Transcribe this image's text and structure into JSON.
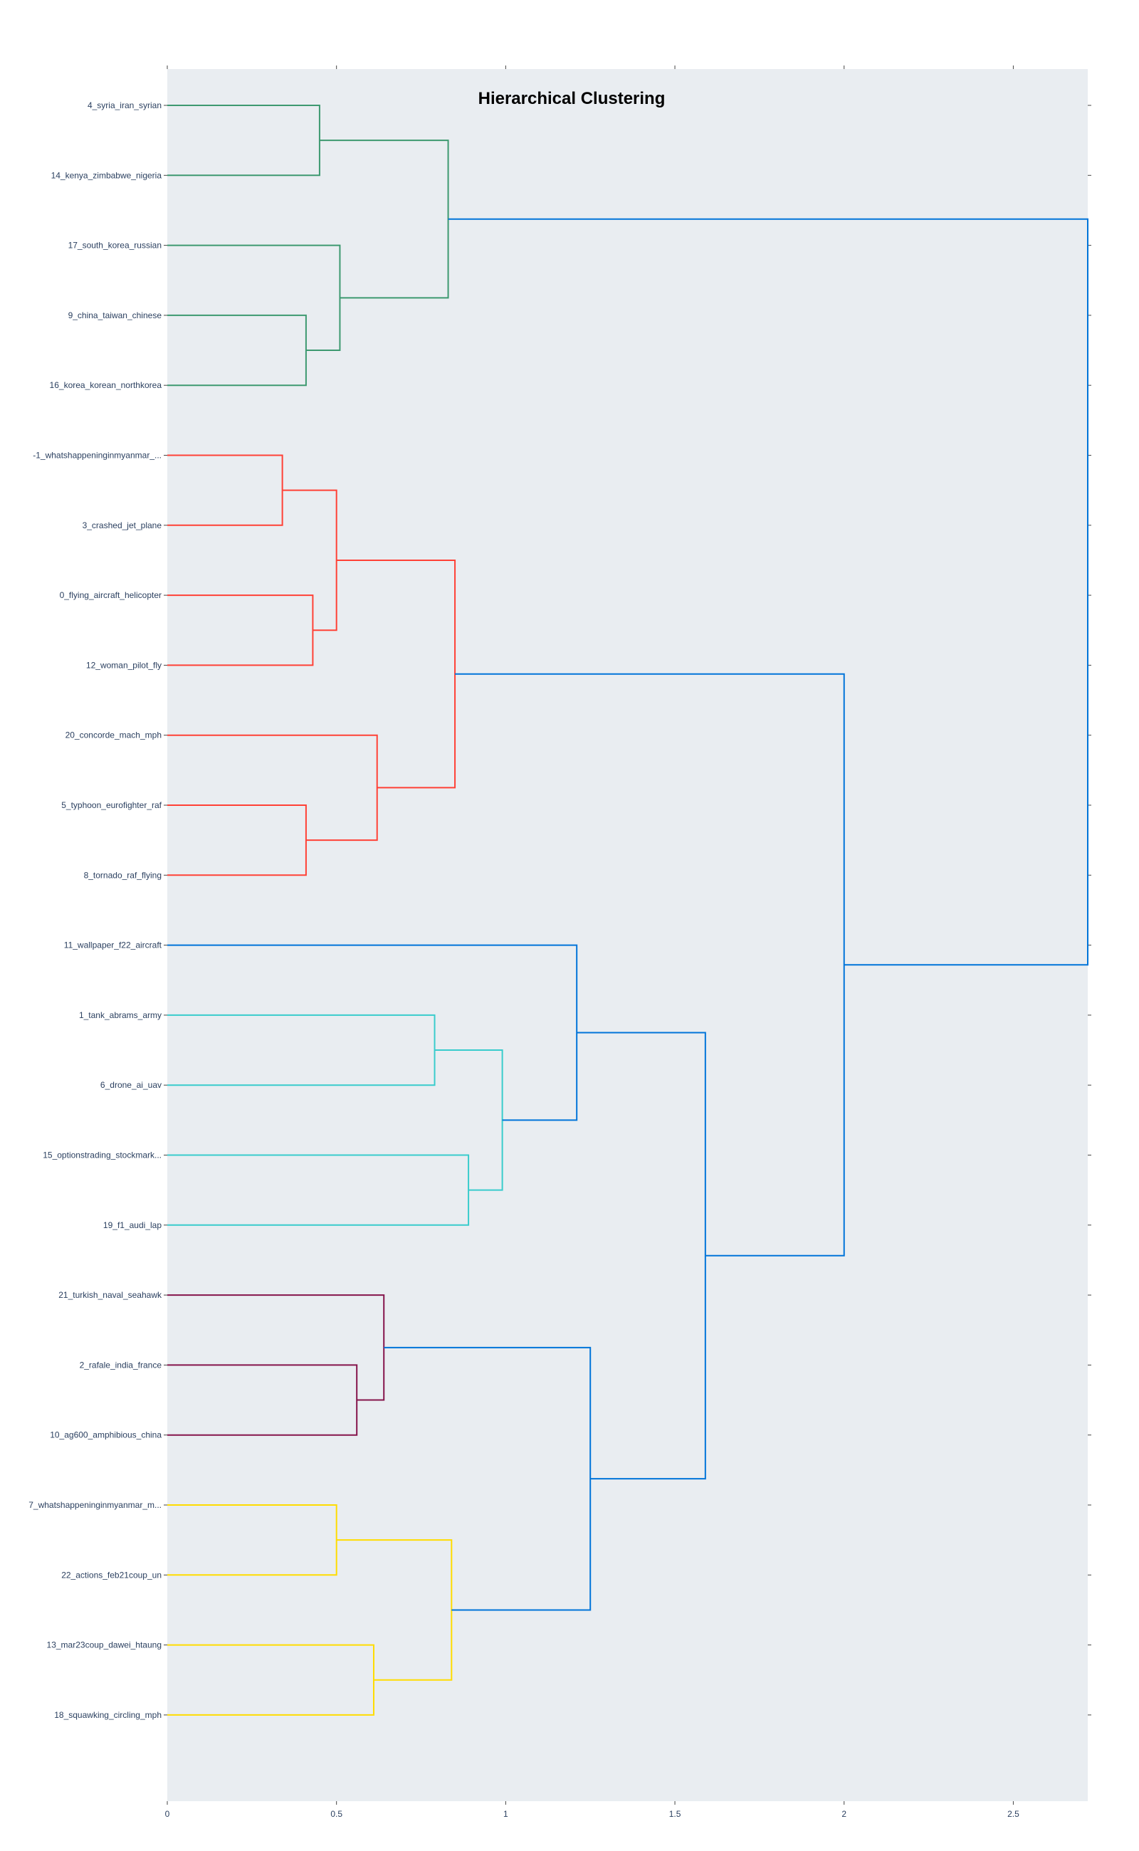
{
  "chart_data": {
    "type": "dendrogram",
    "title": "Hierarchical Clustering",
    "xlim": [
      0,
      2.72
    ],
    "x_ticks": [
      0,
      0.5,
      1,
      1.5,
      2,
      2.5
    ],
    "x_tick_labels": [
      "0",
      "0.5",
      "1",
      "1.5",
      "2",
      "2.5"
    ],
    "leaves": [
      "4_syria_iran_syrian",
      "14_kenya_zimbabwe_nigeria",
      "17_south_korea_russian",
      "9_china_taiwan_chinese",
      "16_korea_korean_northkorea",
      "-1_whatshappeninginmyanmar_...",
      "3_crashed_jet_plane",
      "0_flying_aircraft_helicopter",
      "12_woman_pilot_fly",
      "20_concorde_mach_mph",
      "5_typhoon_eurofighter_raf",
      "8_tornado_raf_flying",
      "11_wallpaper_f22_aircraft",
      "1_tank_abrams_army",
      "6_drone_ai_uav",
      "15_optionstrading_stockmark...",
      "19_f1_audi_lap",
      "21_turkish_naval_seahawk",
      "2_rafale_india_france",
      "10_ag600_amphibious_china",
      "7_whatshappeninginmyanmar_m...",
      "22_actions_feb21coup_un",
      "13_mar23coup_dawei_htaung",
      "18_squawking_circling_mph"
    ],
    "colors": {
      "green": "#3d9970",
      "red": "#ff4136",
      "blue": "#0074d9",
      "cyan": "#39cccc",
      "maroon": "#85144b",
      "yellow": "#ffdc00"
    },
    "merges": [
      {
        "id": "A",
        "a": "L0",
        "b": "L1",
        "height": 0.45,
        "color": "green"
      },
      {
        "id": "B",
        "a": "L3",
        "b": "L4",
        "height": 0.41,
        "color": "green"
      },
      {
        "id": "C",
        "a": "L2",
        "b": "B",
        "height": 0.51,
        "color": "green"
      },
      {
        "id": "D",
        "a": "A",
        "b": "C",
        "height": 0.83,
        "color": "green"
      },
      {
        "id": "E",
        "a": "L5",
        "b": "L6",
        "height": 0.34,
        "color": "red"
      },
      {
        "id": "F",
        "a": "L7",
        "b": "L8",
        "height": 0.43,
        "color": "red"
      },
      {
        "id": "G",
        "a": "E",
        "b": "F",
        "height": 0.5,
        "color": "red"
      },
      {
        "id": "H",
        "a": "L10",
        "b": "L11",
        "height": 0.41,
        "color": "red"
      },
      {
        "id": "I",
        "a": "L9",
        "b": "H",
        "height": 0.62,
        "color": "red"
      },
      {
        "id": "J",
        "a": "G",
        "b": "I",
        "height": 0.85,
        "color": "red"
      },
      {
        "id": "K",
        "a": "L13",
        "b": "L14",
        "height": 0.79,
        "color": "cyan"
      },
      {
        "id": "M",
        "a": "L15",
        "b": "L16",
        "height": 0.89,
        "color": "cyan"
      },
      {
        "id": "N",
        "a": "K",
        "b": "M",
        "height": 0.99,
        "color": "cyan"
      },
      {
        "id": "O",
        "a": "L12",
        "b": "N",
        "height": 1.21,
        "color": "blue"
      },
      {
        "id": "P",
        "a": "L18",
        "b": "L19",
        "height": 0.56,
        "color": "maroon"
      },
      {
        "id": "Q",
        "a": "L17",
        "b": "P",
        "height": 0.64,
        "color": "maroon"
      },
      {
        "id": "R",
        "a": "L20",
        "b": "L21",
        "height": 0.5,
        "color": "yellow"
      },
      {
        "id": "S",
        "a": "L22",
        "b": "L23",
        "height": 0.61,
        "color": "yellow"
      },
      {
        "id": "T",
        "a": "R",
        "b": "S",
        "height": 0.84,
        "color": "yellow"
      },
      {
        "id": "U",
        "a": "Q",
        "b": "T",
        "height": 1.25,
        "color": "blue"
      },
      {
        "id": "V",
        "a": "O",
        "b": "U",
        "height": 1.59,
        "color": "blue"
      },
      {
        "id": "W",
        "a": "J",
        "b": "V",
        "height": 2.0,
        "color": "blue"
      },
      {
        "id": "X",
        "a": "D",
        "b": "W",
        "height": 2.72,
        "color": "blue"
      }
    ]
  }
}
